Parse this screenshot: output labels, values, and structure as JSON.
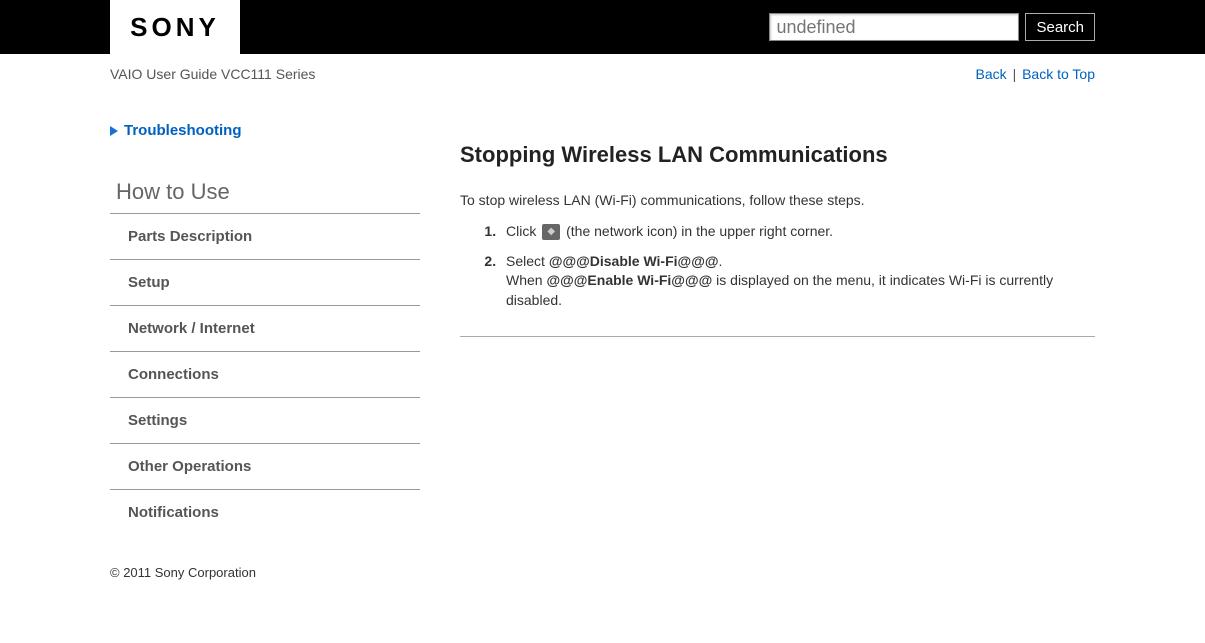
{
  "header": {
    "logo_text": "SONY",
    "search_placeholder": "undefined",
    "search_button": "Search"
  },
  "subheader": {
    "guide_title": "VAIO User Guide VCC111 Series",
    "back_label": "Back",
    "back_to_top_label": "Back to Top"
  },
  "sidebar": {
    "troubleshooting_label": "Troubleshooting",
    "how_to_use_title": "How to Use",
    "nav_items": [
      "Parts Description",
      "Setup",
      "Network / Internet",
      "Connections",
      "Settings",
      "Other Operations",
      "Notifications"
    ]
  },
  "content": {
    "page_title": "Stopping Wireless LAN Communications",
    "intro": "To stop wireless LAN (Wi-Fi) communications, follow these steps.",
    "step1_prefix": "Click ",
    "step1_suffix": " (the network icon) in the upper right corner.",
    "step2_prefix": "Select ",
    "step2_bold1": "@@@Disable Wi-Fi@@@",
    "step2_mid1": ".",
    "step2_line2a": "When ",
    "step2_bold2": "@@@Enable Wi-Fi@@@",
    "step2_line2b": " is displayed on the menu, it indicates Wi-Fi is currently disabled."
  },
  "footer": {
    "copyright": "© 2011 Sony Corporation"
  },
  "colors": {
    "link": "#0060c0",
    "topbar_bg": "#000000",
    "text": "#333333",
    "muted": "#666666"
  }
}
